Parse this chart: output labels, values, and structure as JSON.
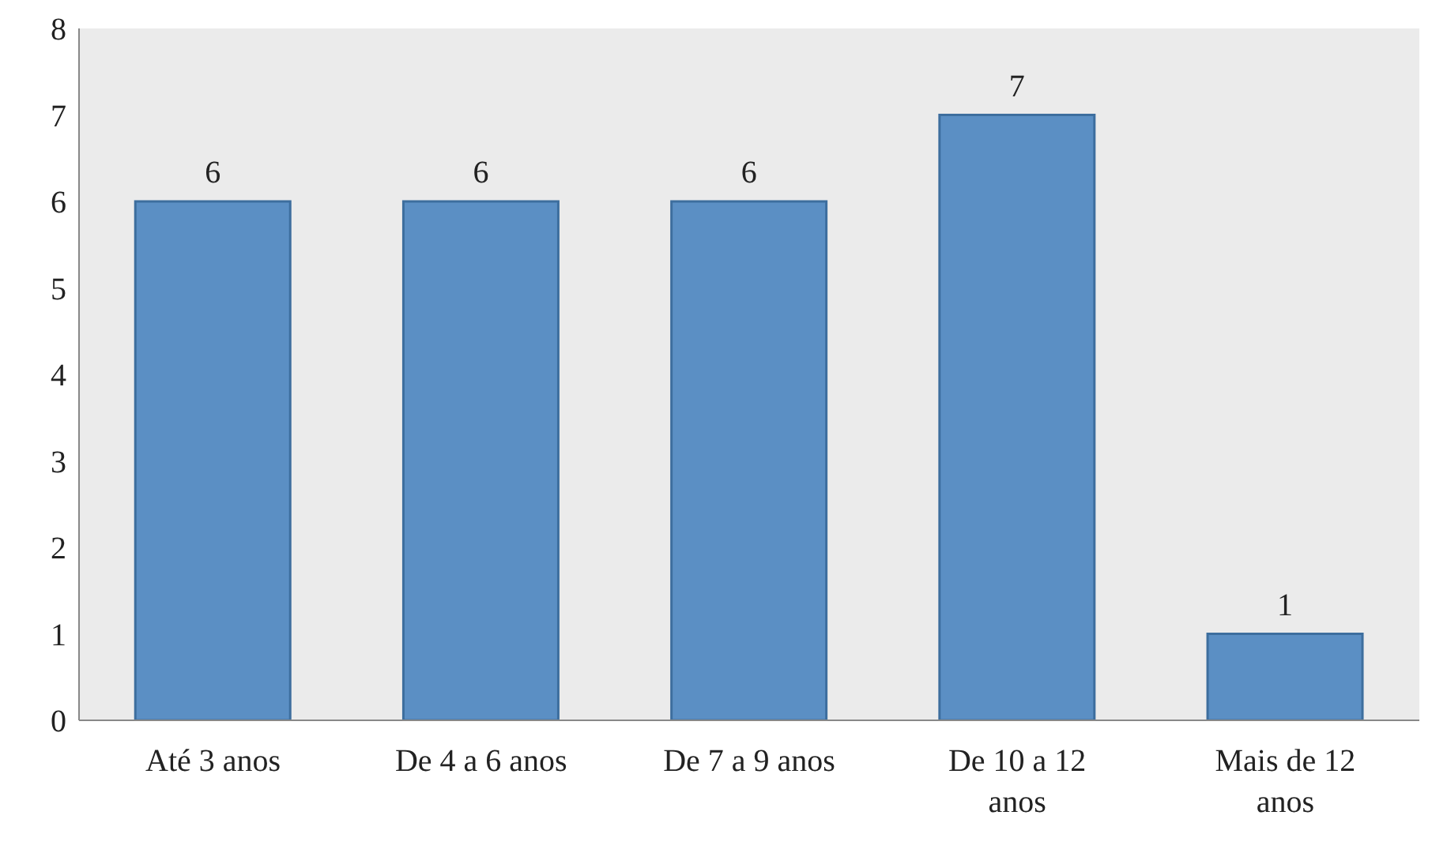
{
  "chart_data": {
    "type": "bar",
    "categories": [
      "Até 3 anos",
      "De 4 a 6 anos",
      "De 7 a 9 anos",
      "De 10 a 12 anos",
      "Mais de 12 anos"
    ],
    "values": [
      6,
      6,
      6,
      7,
      1
    ],
    "color": "#5b8fc4",
    "ylim": [
      0,
      8
    ],
    "yticks": [
      0,
      1,
      2,
      3,
      4,
      5,
      6,
      7,
      8
    ],
    "data_labels": true,
    "grid": false
  }
}
